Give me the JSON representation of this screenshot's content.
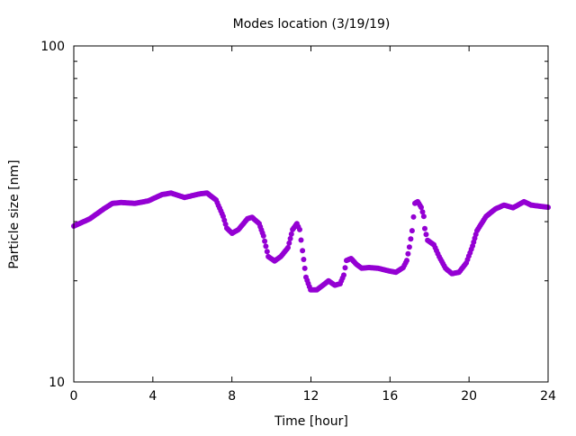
{
  "chart_data": {
    "type": "scatter",
    "title": "Modes location (3/19/19)",
    "xlabel": "Time [hour]",
    "ylabel": "Particle size [nm]",
    "xlim": [
      0,
      24
    ],
    "ylim": [
      10,
      100
    ],
    "yscale": "log",
    "xticks": [
      "0",
      "4",
      "8",
      "12",
      "16",
      "20",
      "24"
    ],
    "yticks": [
      "10",
      "100"
    ],
    "grid": false,
    "legend": "none",
    "marker_color": "#9400d3",
    "series": [
      {
        "name": "modes",
        "points": [
          [
            0,
            29.1
          ],
          [
            0.82,
            30.6
          ],
          [
            1.5,
            32.7
          ],
          [
            1.96,
            34.0
          ],
          [
            2.4,
            34.2
          ],
          [
            3.1,
            34.0
          ],
          [
            3.78,
            34.6
          ],
          [
            4.46,
            36.1
          ],
          [
            4.92,
            36.5
          ],
          [
            5.6,
            35.4
          ],
          [
            6.38,
            36.3
          ],
          [
            6.74,
            36.5
          ],
          [
            7.2,
            34.8
          ],
          [
            7.56,
            31.1
          ],
          [
            7.74,
            28.7
          ],
          [
            8.01,
            27.7
          ],
          [
            8.33,
            28.4
          ],
          [
            8.79,
            30.6
          ],
          [
            9.02,
            30.9
          ],
          [
            9.38,
            29.6
          ],
          [
            9.6,
            27.2
          ],
          [
            9.84,
            23.6
          ],
          [
            10.16,
            22.9
          ],
          [
            10.47,
            23.6
          ],
          [
            10.84,
            25.1
          ],
          [
            11.07,
            28.4
          ],
          [
            11.29,
            29.6
          ],
          [
            11.43,
            28.4
          ],
          [
            11.57,
            24.6
          ],
          [
            11.75,
            20.5
          ],
          [
            11.98,
            18.8
          ],
          [
            12.3,
            18.8
          ],
          [
            12.66,
            19.5
          ],
          [
            12.89,
            20.0
          ],
          [
            13.21,
            19.4
          ],
          [
            13.48,
            19.6
          ],
          [
            13.66,
            20.8
          ],
          [
            13.8,
            23.0
          ],
          [
            14.03,
            23.3
          ],
          [
            14.3,
            22.4
          ],
          [
            14.57,
            21.8
          ],
          [
            14.94,
            21.9
          ],
          [
            15.39,
            21.8
          ],
          [
            15.94,
            21.4
          ],
          [
            16.3,
            21.2
          ],
          [
            16.67,
            21.9
          ],
          [
            16.85,
            23.0
          ],
          [
            16.98,
            25.2
          ],
          [
            17.12,
            28.2
          ],
          [
            17.26,
            34.0
          ],
          [
            17.4,
            34.4
          ],
          [
            17.58,
            33.1
          ],
          [
            17.71,
            31.1
          ],
          [
            17.76,
            28.6
          ],
          [
            17.9,
            26.4
          ],
          [
            18.22,
            25.6
          ],
          [
            18.49,
            23.6
          ],
          [
            18.81,
            21.8
          ],
          [
            19.13,
            21.0
          ],
          [
            19.49,
            21.2
          ],
          [
            19.86,
            22.6
          ],
          [
            20.18,
            25.4
          ],
          [
            20.4,
            28.2
          ],
          [
            20.86,
            31.1
          ],
          [
            21.32,
            32.7
          ],
          [
            21.77,
            33.6
          ],
          [
            22.23,
            33.0
          ],
          [
            22.78,
            34.4
          ],
          [
            23.14,
            33.6
          ],
          [
            24,
            33.1
          ]
        ]
      }
    ]
  }
}
